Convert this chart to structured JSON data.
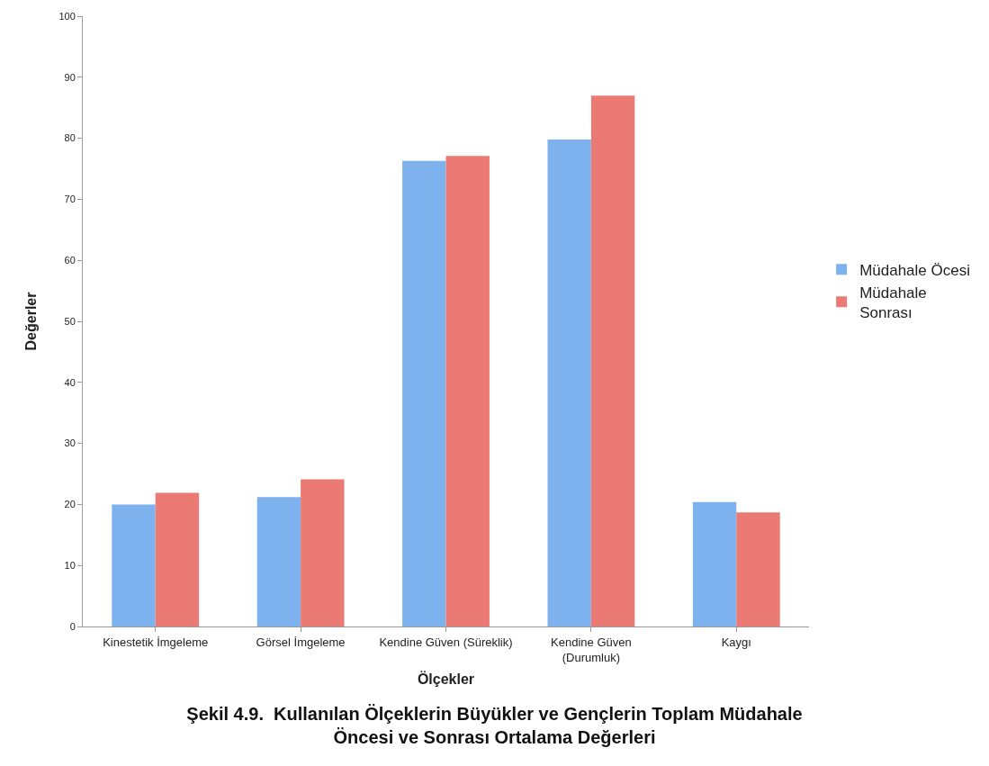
{
  "chart_data": {
    "type": "bar",
    "title": "Şekil 4.9.  Kullanılan Ölçeklerin Büyükler ve Gençlerin Toplam Müdahale\nÖncesi ve Sonrası Ortalama Değerleri",
    "xlabel": "Ölçekler",
    "ylabel": "Değerler",
    "categories": [
      "Kinestetik İmgeleme",
      "Görsel İmgeleme",
      "Kendine Güven (Süreklik)",
      "Kendine Güven\n(Durumluk)",
      "Kaygı"
    ],
    "series": [
      {
        "name": "Müdahale Öcesi",
        "color": "#7eb2ee",
        "values": [
          20.0,
          21.2,
          76.3,
          79.8,
          20.4
        ]
      },
      {
        "name": "Müdahale\nSonrası",
        "color": "#ec7a74",
        "values": [
          21.9,
          24.1,
          77.1,
          87.0,
          18.7
        ]
      }
    ],
    "ylim": [
      0,
      100
    ],
    "yticks": [
      0,
      10,
      20,
      30,
      40,
      50,
      60,
      70,
      80,
      90,
      100
    ],
    "grid": false,
    "legend": "right"
  }
}
